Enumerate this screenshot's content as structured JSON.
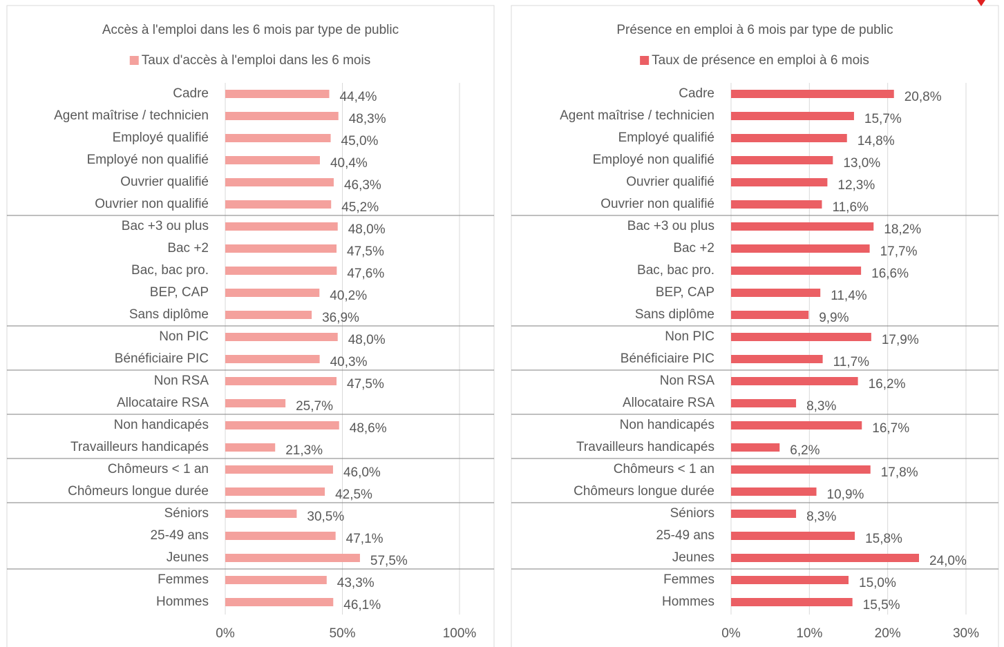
{
  "chart_data": [
    {
      "type": "bar",
      "orientation": "horizontal",
      "title": "Accès à l'emploi dans les 6 mois par type de public",
      "categories": [
        "Cadre",
        "Agent maîtrise / technicien",
        "Employé qualifié",
        "Employé non qualifié",
        "Ouvrier qualifié",
        "Ouvrier non qualifié",
        "Bac +3 ou plus",
        "Bac +2",
        "Bac, bac pro.",
        "BEP, CAP",
        "Sans diplôme",
        "Non PIC",
        "Bénéficiaire PIC",
        "Non RSA",
        "Allocataire RSA",
        "Non handicapés",
        "Travailleurs handicapés",
        "Chômeurs < 1 an",
        "Chômeurs longue durée",
        "Séniors",
        "25-49 ans",
        "Jeunes",
        "Femmes",
        "Hommes"
      ],
      "series": [
        {
          "name": "Taux d'accès à l'emploi dans les 6 mois",
          "color": "#f4a19d",
          "values": [
            44.4,
            48.3,
            45.0,
            40.4,
            46.3,
            45.2,
            48.0,
            47.5,
            47.6,
            40.2,
            36.9,
            48.0,
            40.3,
            47.5,
            25.7,
            48.6,
            21.3,
            46.0,
            42.5,
            30.5,
            47.1,
            57.5,
            43.3,
            46.1
          ],
          "value_labels": [
            "44,4%",
            "48,3%",
            "45,0%",
            "40,4%",
            "46,3%",
            "45,2%",
            "48,0%",
            "47,5%",
            "47,6%",
            "40,2%",
            "36,9%",
            "48,0%",
            "40,3%",
            "47,5%",
            "25,7%",
            "48,6%",
            "21,3%",
            "46,0%",
            "42,5%",
            "30,5%",
            "47,1%",
            "57,5%",
            "43,3%",
            "46,1%"
          ]
        }
      ],
      "xlim": [
        0,
        100
      ],
      "xticks": [
        {
          "value": 0,
          "label": "0%"
        },
        {
          "value": 50,
          "label": "50%"
        },
        {
          "value": 100,
          "label": "100%"
        }
      ],
      "grid": true,
      "legend": "top"
    },
    {
      "type": "bar",
      "orientation": "horizontal",
      "title": "Présence en emploi à 6 mois par type de public",
      "categories": [
        "Cadre",
        "Agent maîtrise / technicien",
        "Employé qualifié",
        "Employé non qualifié",
        "Ouvrier qualifié",
        "Ouvrier non qualifié",
        "Bac +3 ou plus",
        "Bac +2",
        "Bac, bac pro.",
        "BEP, CAP",
        "Sans diplôme",
        "Non PIC",
        "Bénéficiaire PIC",
        "Non RSA",
        "Allocataire RSA",
        "Non handicapés",
        "Travailleurs handicapés",
        "Chômeurs < 1 an",
        "Chômeurs longue durée",
        "Séniors",
        "25-49 ans",
        "Jeunes",
        "Femmes",
        "Hommes"
      ],
      "series": [
        {
          "name": "Taux de présence en emploi à 6 mois",
          "color": "#eb5f64",
          "values": [
            20.8,
            15.7,
            14.8,
            13.0,
            12.3,
            11.6,
            18.2,
            17.7,
            16.6,
            11.4,
            9.9,
            17.9,
            11.7,
            16.2,
            8.3,
            16.7,
            6.2,
            17.8,
            10.9,
            8.3,
            15.8,
            24.0,
            15.0,
            15.5
          ],
          "value_labels": [
            "20,8%",
            "15,7%",
            "14,8%",
            "13,0%",
            "12,3%",
            "11,6%",
            "18,2%",
            "17,7%",
            "16,6%",
            "11,4%",
            "9,9%",
            "17,9%",
            "11,7%",
            "16,2%",
            "8,3%",
            "16,7%",
            "6,2%",
            "17,8%",
            "10,9%",
            "8,3%",
            "15,8%",
            "24,0%",
            "15,0%",
            "15,5%"
          ]
        }
      ],
      "xlim": [
        0,
        30
      ],
      "xticks": [
        {
          "value": 0,
          "label": "0%"
        },
        {
          "value": 10,
          "label": "10%"
        },
        {
          "value": 20,
          "label": "20%"
        },
        {
          "value": 30,
          "label": "30%"
        }
      ],
      "grid": true,
      "legend": "top"
    }
  ]
}
